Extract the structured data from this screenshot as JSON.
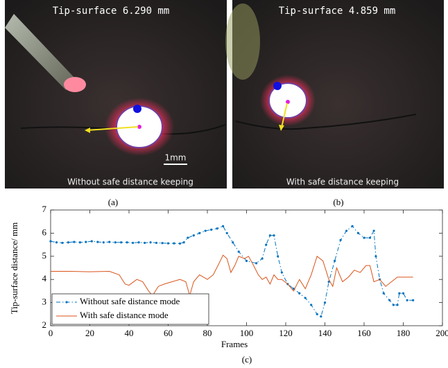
{
  "images": [
    {
      "caption": "(a)",
      "overlay_title": "Tip-surface 6.290 mm",
      "overlay_caption": "Without safe distance keeping",
      "scale_bar": "1mm"
    },
    {
      "caption": "(b)",
      "overlay_title": "Tip-surface 4.859 mm",
      "overlay_caption": "With safe distance keeping"
    }
  ],
  "chart_data": {
    "type": "line",
    "caption": "(c)",
    "x_label": "Frames",
    "y_label": "Tip-surface distance/ mm",
    "xlim": [
      0,
      200
    ],
    "ylim": [
      2,
      7
    ],
    "xticks": [
      0,
      20,
      40,
      60,
      80,
      100,
      120,
      140,
      160,
      180,
      200
    ],
    "yticks": [
      2,
      3,
      4,
      5,
      6,
      7
    ],
    "legend": "lower left",
    "series": [
      {
        "name": "Without safe distance mode",
        "color": "#0072bd",
        "style": "dash-dot",
        "marker": true,
        "x": [
          0,
          3,
          6,
          9,
          12,
          15,
          18,
          21,
          24,
          27,
          30,
          33,
          36,
          39,
          42,
          45,
          48,
          51,
          54,
          57,
          60,
          63,
          66,
          68,
          70,
          73,
          76,
          79,
          82,
          85,
          88,
          90,
          93,
          96,
          100,
          105,
          108,
          110,
          112,
          114,
          116,
          118,
          121,
          124,
          127,
          130,
          133,
          136,
          138,
          140,
          142,
          145,
          148,
          151,
          154,
          157,
          160,
          163,
          165,
          166,
          168,
          170,
          173,
          175,
          177,
          178,
          180,
          182,
          185
        ],
        "values": [
          5.65,
          5.6,
          5.58,
          5.6,
          5.62,
          5.6,
          5.62,
          5.65,
          5.62,
          5.6,
          5.62,
          5.6,
          5.6,
          5.6,
          5.58,
          5.6,
          5.58,
          5.6,
          5.58,
          5.57,
          5.56,
          5.56,
          5.55,
          5.6,
          5.8,
          5.9,
          6.0,
          6.1,
          6.15,
          6.2,
          6.3,
          6.0,
          5.6,
          5.2,
          4.8,
          4.7,
          4.9,
          5.5,
          5.9,
          5.9,
          5.0,
          4.3,
          3.8,
          3.6,
          3.4,
          3.2,
          2.9,
          2.5,
          2.4,
          3.0,
          3.9,
          4.8,
          5.7,
          6.1,
          6.3,
          6.0,
          5.8,
          5.8,
          6.1,
          5.0,
          4.0,
          3.4,
          3.1,
          2.9,
          2.9,
          3.4,
          3.4,
          3.1,
          3.1
        ]
      },
      {
        "name": "With safe distance mode",
        "color": "#d95319",
        "style": "solid",
        "marker": false,
        "x": [
          0,
          10,
          20,
          30,
          35,
          38,
          40,
          44,
          47,
          50,
          52,
          55,
          58,
          62,
          66,
          69,
          71,
          73,
          76,
          80,
          83,
          86,
          88,
          90,
          92,
          94,
          96,
          99,
          101,
          103,
          106,
          108,
          110,
          112,
          114,
          116,
          118,
          121,
          124,
          127,
          130,
          133,
          136,
          139,
          142,
          144,
          146,
          149,
          152,
          155,
          158,
          161,
          163,
          165,
          168,
          171,
          174,
          177,
          180,
          185
        ],
        "values": [
          4.35,
          4.35,
          4.33,
          4.35,
          4.2,
          3.8,
          3.75,
          4.0,
          3.9,
          3.5,
          3.3,
          3.7,
          3.8,
          3.9,
          4.0,
          3.9,
          3.3,
          3.9,
          4.2,
          4.0,
          4.2,
          4.7,
          5.05,
          4.9,
          4.3,
          4.6,
          5.0,
          4.9,
          5.0,
          4.7,
          4.2,
          4.0,
          4.1,
          3.8,
          4.2,
          4.0,
          4.0,
          3.8,
          3.5,
          4.0,
          3.6,
          4.2,
          5.0,
          4.8,
          4.0,
          3.7,
          4.5,
          3.9,
          4.1,
          4.4,
          4.3,
          4.6,
          4.6,
          3.9,
          4.0,
          3.7,
          3.9,
          4.1,
          4.1,
          4.1
        ]
      }
    ]
  }
}
